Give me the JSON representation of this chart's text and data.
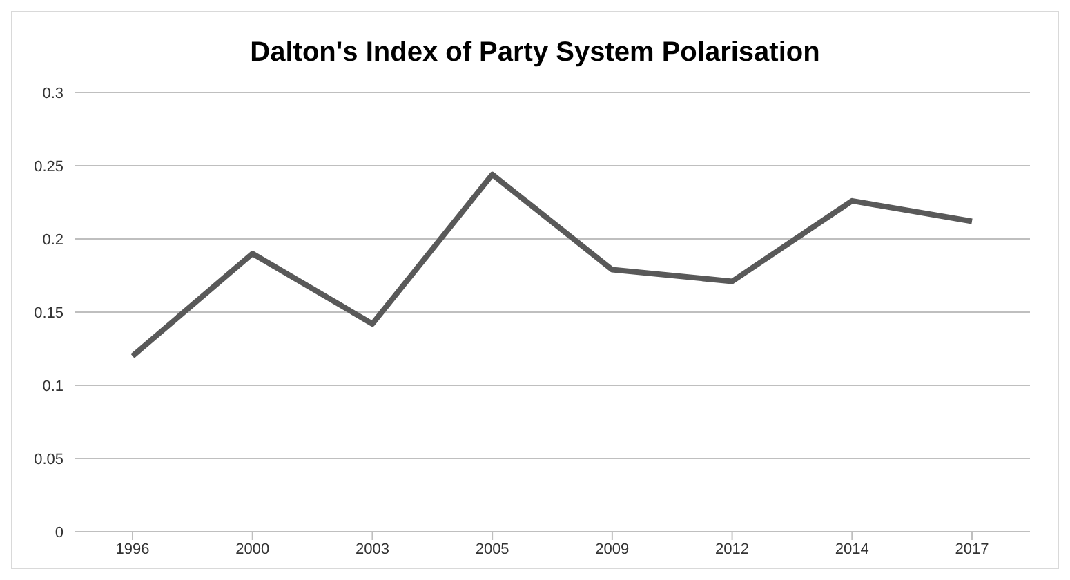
{
  "chart_data": {
    "type": "line",
    "title": "Dalton's Index of Party System Polarisation",
    "categories": [
      "1996",
      "2000",
      "2003",
      "2005",
      "2009",
      "2012",
      "2014",
      "2017"
    ],
    "series": [
      {
        "color": "#595959",
        "values": [
          0.12,
          0.19,
          0.142,
          0.244,
          0.179,
          0.171,
          0.226,
          0.212
        ]
      }
    ],
    "ylim": [
      0,
      0.3
    ],
    "yticks": [
      0,
      0.05,
      0.1,
      0.15,
      0.2,
      0.25,
      0.3
    ],
    "grid": "y",
    "marker": "none",
    "line_style": "solid",
    "legend": false
  }
}
